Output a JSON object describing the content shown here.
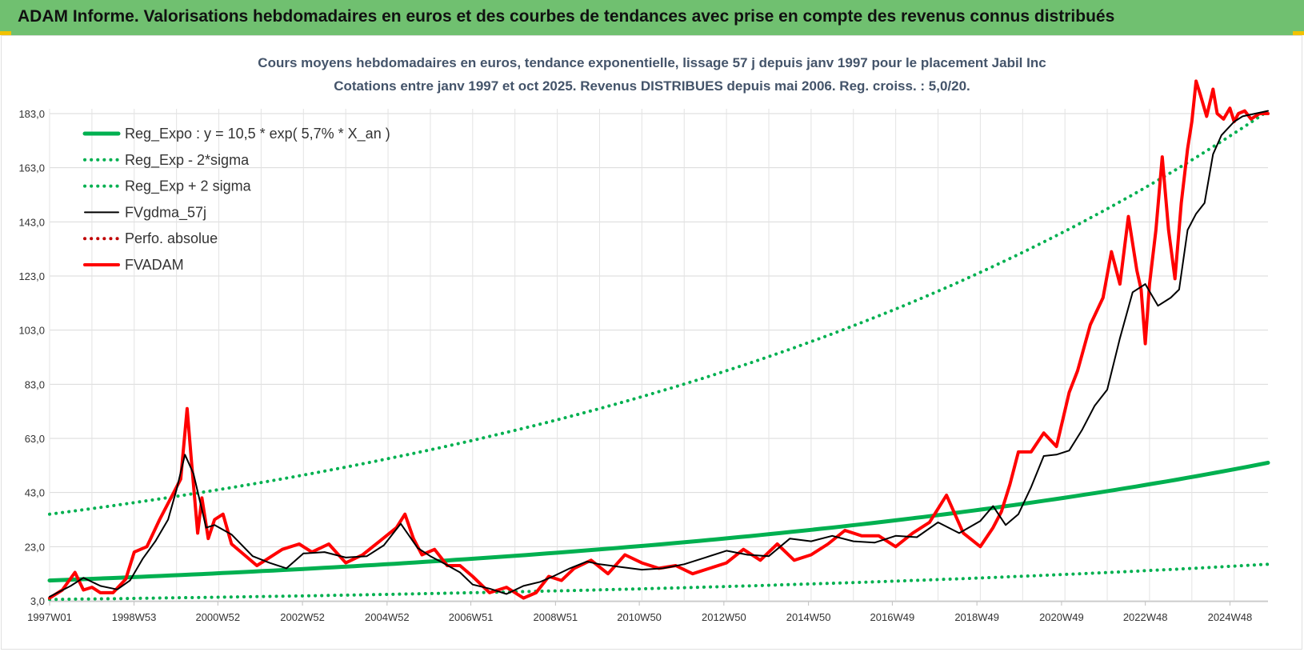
{
  "banner": {
    "title": "ADAM Informe. Valorisations hebdomadaires en euros et des courbes de tendances avec prise en compte des revenus connus distribués"
  },
  "chart_data": {
    "type": "line",
    "title_line1": "Cours moyens hebdomadaires en euros, tendance exponentielle, lissage 57 j depuis janv 1997 pour le placement Jabil Inc",
    "title_line2": "Cotations entre janv 1997 et oct 2025. Revenus DISTRIBUES depuis mai 2006.  Reg. croiss. : 5,0/20.",
    "xlabel": "",
    "ylabel": "",
    "ylim": [
      3,
      200
    ],
    "x_range": [
      1997.0,
      2025.8
    ],
    "y_ticks": [
      "3,0",
      "23,0",
      "43,0",
      "63,0",
      "83,0",
      "103,0",
      "123,0",
      "143,0",
      "163,0",
      "183,0"
    ],
    "x_ticks": [
      "1997W01",
      "1998W53",
      "2000W52",
      "2002W52",
      "2004W52",
      "2006W51",
      "2008W51",
      "2010W50",
      "2012W50",
      "2014W50",
      "2016W49",
      "2018W49",
      "2020W49",
      "2022W48",
      "2024W48"
    ],
    "grid": true,
    "legend_position": "top-left",
    "colors": {
      "green": "#00b050",
      "black": "#000000",
      "red": "#ff0000",
      "dark_red": "#c00000"
    },
    "series": [
      {
        "name": "Reg_Expo : y = 10,5 * exp( 5,7% *  X_an )",
        "style": "solid-thick",
        "color": "#00b050",
        "x": [
          1997.0,
          2025.8
        ],
        "values": [
          10.5,
          54.0
        ],
        "shape": "exponential"
      },
      {
        "name": "Reg_Exp - 2*sigma",
        "style": "dotted",
        "color": "#00b050",
        "x": [
          1997.0,
          2025.8
        ],
        "values": [
          3.5,
          16.5
        ],
        "shape": "exponential"
      },
      {
        "name": "Reg_Exp + 2 sigma",
        "style": "dotted",
        "color": "#00b050",
        "x": [
          1997.0,
          2025.8
        ],
        "values": [
          35.0,
          184.0
        ],
        "shape": "exponential"
      },
      {
        "name": "FVgdma_57j",
        "style": "solid",
        "color": "#000000",
        "x": [
          1997.0,
          1997.5,
          1997.8,
          1998.2,
          1998.6,
          1998.9,
          1999.2,
          1999.5,
          1999.8,
          2000.0,
          2000.2,
          2000.4,
          2000.7,
          2000.9,
          2001.3,
          2001.8,
          2002.2,
          2002.6,
          2003.0,
          2003.5,
          2004.0,
          2004.5,
          2004.9,
          2005.3,
          2005.7,
          2006.0,
          2006.3,
          2006.7,
          2007.0,
          2007.4,
          2007.8,
          2008.2,
          2008.6,
          2008.9,
          2009.3,
          2009.7,
          2010.0,
          2010.5,
          2011.0,
          2011.5,
          2012.0,
          2012.5,
          2013.0,
          2013.5,
          2014.0,
          2014.5,
          2015.0,
          2015.5,
          2016.0,
          2016.5,
          2017.0,
          2017.5,
          2018.0,
          2018.5,
          2019.0,
          2019.3,
          2019.6,
          2019.9,
          2020.2,
          2020.5,
          2020.8,
          2021.1,
          2021.4,
          2021.7,
          2022.0,
          2022.3,
          2022.6,
          2022.9,
          2023.2,
          2023.5,
          2023.7,
          2023.9,
          2024.1,
          2024.3,
          2024.5,
          2024.7,
          2025.0,
          2025.2,
          2025.5,
          2025.8
        ],
        "values": [
          4.5,
          8.5,
          11.5,
          8.5,
          7.2,
          10.5,
          18.5,
          25.0,
          33.0,
          44.0,
          57.0,
          50.0,
          30.0,
          31.0,
          27.5,
          19.5,
          17.0,
          15.0,
          20.5,
          21.0,
          19.0,
          19.5,
          23.5,
          31.5,
          22.5,
          19.5,
          17.0,
          13.5,
          9.0,
          7.5,
          5.5,
          8.5,
          10.0,
          12.0,
          15.0,
          17.5,
          16.5,
          15.5,
          14.5,
          15.0,
          16.5,
          19.0,
          21.5,
          20.0,
          19.5,
          26.0,
          25.0,
          27.0,
          25.0,
          24.5,
          27.0,
          26.5,
          32.0,
          28.0,
          32.5,
          38.0,
          31.0,
          35.0,
          45.0,
          56.5,
          57.0,
          58.5,
          66.0,
          75.0,
          81.0,
          100.0,
          117.0,
          120.0,
          112.0,
          115.0,
          118.0,
          140.0,
          146.0,
          150.0,
          168.0,
          175.0,
          180.0,
          182.0,
          183.0,
          184.0
        ]
      },
      {
        "name": "Perfo. absolue",
        "style": "dotted",
        "color": "#c00000",
        "x": [],
        "values": []
      },
      {
        "name": "FVADAM",
        "style": "solid-thick",
        "color": "#ff0000",
        "x": [
          1997.0,
          1997.3,
          1997.6,
          1997.8,
          1998.0,
          1998.2,
          1998.5,
          1998.8,
          1999.0,
          1999.3,
          1999.6,
          1999.9,
          2000.1,
          2000.25,
          2000.35,
          2000.5,
          2000.6,
          2000.75,
          2000.9,
          2001.1,
          2001.3,
          2001.6,
          2001.9,
          2002.1,
          2002.5,
          2002.9,
          2003.2,
          2003.6,
          2004.0,
          2004.4,
          2004.8,
          2005.2,
          2005.4,
          2005.6,
          2005.8,
          2006.1,
          2006.4,
          2006.7,
          2007.0,
          2007.4,
          2007.8,
          2008.2,
          2008.5,
          2008.8,
          2009.1,
          2009.4,
          2009.8,
          2010.2,
          2010.6,
          2011.0,
          2011.4,
          2011.8,
          2012.2,
          2012.6,
          2013.0,
          2013.4,
          2013.8,
          2014.2,
          2014.6,
          2015.0,
          2015.4,
          2015.8,
          2016.2,
          2016.6,
          2017.0,
          2017.4,
          2017.8,
          2018.2,
          2018.6,
          2019.0,
          2019.3,
          2019.5,
          2019.7,
          2019.9,
          2020.2,
          2020.5,
          2020.8,
          2021.1,
          2021.3,
          2021.6,
          2021.9,
          2022.1,
          2022.3,
          2022.5,
          2022.7,
          2022.8,
          2022.9,
          2023.0,
          2023.15,
          2023.3,
          2023.45,
          2023.6,
          2023.75,
          2023.9,
          2024.0,
          2024.1,
          2024.2,
          2024.35,
          2024.5,
          2024.6,
          2024.75,
          2024.9,
          2025.0,
          2025.1,
          2025.25,
          2025.4,
          2025.6,
          2025.8
        ],
        "values": [
          4.0,
          7.0,
          13.5,
          7.0,
          8.0,
          6.0,
          6.0,
          11.0,
          21.0,
          23.0,
          33.0,
          42.0,
          48.0,
          74.0,
          55.0,
          28.0,
          41.0,
          26.0,
          33.0,
          35.0,
          24.0,
          20.0,
          16.0,
          18.0,
          22.0,
          24.0,
          21.0,
          24.0,
          17.0,
          20.0,
          25.0,
          30.0,
          35.0,
          26.0,
          20.0,
          22.0,
          16.0,
          16.0,
          12.0,
          6.0,
          8.0,
          4.0,
          6.0,
          12.0,
          10.5,
          15.0,
          18.0,
          13.0,
          20.0,
          17.0,
          15.0,
          16.0,
          13.0,
          15.0,
          17.0,
          22.0,
          18.0,
          24.0,
          18.0,
          20.0,
          24.0,
          29.0,
          27.0,
          27.0,
          23.0,
          28.0,
          32.0,
          42.0,
          28.0,
          23.0,
          30.0,
          36.0,
          46.0,
          58.0,
          58.0,
          65.0,
          60.0,
          80.0,
          88.0,
          105.0,
          115.0,
          132.0,
          120.0,
          145.0,
          125.0,
          118.0,
          98.0,
          120.0,
          140.0,
          167.0,
          140.0,
          122.0,
          150.0,
          170.0,
          180.0,
          195.0,
          190.0,
          182.0,
          192.0,
          183.0,
          181.0,
          185.0,
          180.0,
          183.0,
          184.0,
          181.0,
          183.0,
          183.0
        ]
      }
    ]
  }
}
